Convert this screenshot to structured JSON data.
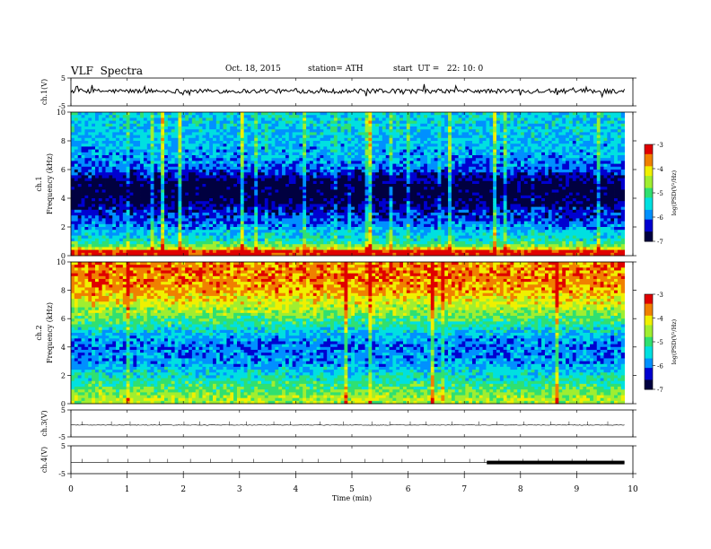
{
  "header": {
    "title": "VLF  Spectra",
    "date": "Oct. 18, 2015",
    "station": "station= ATH",
    "start": "start  UT =   22: 10: 0"
  },
  "chart_data": {
    "type": "spectrogram",
    "x_axis": {
      "label": "Time  (min)",
      "range": [
        0,
        10
      ],
      "ticks": [
        "0",
        "1",
        "2",
        "3",
        "4",
        "5",
        "6",
        "7",
        "8",
        "9",
        "10"
      ]
    },
    "panels": [
      {
        "id": "ch1-wave",
        "type": "line",
        "ylabel": "ch.1(V)",
        "ylim": [
          -5,
          5
        ],
        "ticks": [
          "5",
          "-5"
        ],
        "baseline": 0.3,
        "data_end_min": 9.85
      },
      {
        "id": "ch1-spec",
        "type": "heatmap",
        "ylabel": "ch.1\nFrequency (kHz)",
        "ylabel_line1": "ch.1",
        "ylabel_line2": "Frequency  (kHz)",
        "ylim": [
          0,
          10
        ],
        "ticks": [
          "0",
          "2",
          "4",
          "6",
          "8",
          "10"
        ],
        "colorbar": {
          "label": "log(PSD(V²/Hz)",
          "range": [
            -7,
            -3
          ],
          "ticks": [
            "-3",
            "-4",
            "-5",
            "-6",
            "-7"
          ]
        },
        "profile": [
          {
            "f": 0.3,
            "v": -3.2
          },
          {
            "f": 0.6,
            "v": -4.6
          },
          {
            "f": 1.0,
            "v": -5.3
          },
          {
            "f": 1.6,
            "v": -5.6
          },
          {
            "f": 2.4,
            "v": -6.1
          },
          {
            "f": 3.2,
            "v": -6.4
          },
          {
            "f": 4.0,
            "v": -6.9
          },
          {
            "f": 5.0,
            "v": -6.9
          },
          {
            "f": 6.0,
            "v": -6.1
          },
          {
            "f": 7.0,
            "v": -5.8
          },
          {
            "f": 8.5,
            "v": -5.6
          },
          {
            "f": 10,
            "v": -5.5
          }
        ]
      },
      {
        "id": "ch2-spec",
        "type": "heatmap",
        "ylabel_line1": "ch.2",
        "ylabel_line2": "Frequency  (kHz)",
        "ylim": [
          0,
          10
        ],
        "ticks": [
          "0",
          "2",
          "4",
          "6",
          "8",
          "10"
        ],
        "colorbar": {
          "label": "log(PSD(V²/Hz)",
          "range": [
            -7,
            -3
          ],
          "ticks": [
            "-3",
            "-4",
            "-5",
            "-6",
            "-7"
          ]
        },
        "profile": [
          {
            "f": 0.3,
            "v": -4.5
          },
          {
            "f": 1.0,
            "v": -4.9
          },
          {
            "f": 2.0,
            "v": -5.4
          },
          {
            "f": 3.0,
            "v": -5.9
          },
          {
            "f": 4.0,
            "v": -6.0
          },
          {
            "f": 5.0,
            "v": -5.6
          },
          {
            "f": 6.0,
            "v": -4.9
          },
          {
            "f": 7.0,
            "v": -4.3
          },
          {
            "f": 8.0,
            "v": -3.8
          },
          {
            "f": 9.0,
            "v": -3.6
          },
          {
            "f": 10,
            "v": -3.7
          }
        ]
      },
      {
        "id": "ch3-wave",
        "type": "line",
        "ylabel": "ch.3(V)",
        "ylim": [
          -5,
          5
        ],
        "ticks": [
          "5",
          "-5"
        ],
        "baseline": -0.6,
        "data_end_min": 9.85
      },
      {
        "id": "ch4-wave",
        "type": "line",
        "ylabel": "ch.4(V)",
        "ylim": [
          -5,
          5
        ],
        "ticks": [
          "5",
          "-5"
        ],
        "baseline": -1.0,
        "data_end_min": 9.85,
        "thick_segment_min": [
          7.4,
          9.85
        ]
      }
    ]
  },
  "colors": {
    "axis": "#000000",
    "trace": "#000000",
    "colormap": [
      "#000040",
      "#0000d0",
      "#0090ff",
      "#00e0e0",
      "#30e070",
      "#a0ee30",
      "#f0f000",
      "#f08000",
      "#e00000",
      "#ffffff"
    ]
  }
}
